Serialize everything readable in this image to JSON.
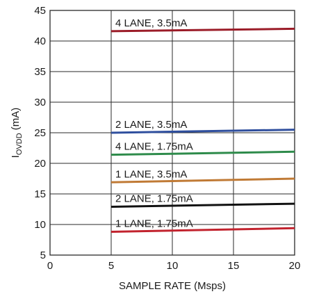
{
  "chart_data": {
    "type": "line",
    "xlabel": "SAMPLE RATE (Msps)",
    "ylabel": {
      "main": "I",
      "sub": "OVDD",
      "unit": " (mA)"
    },
    "xlim": [
      0,
      20
    ],
    "ylim": [
      5,
      45
    ],
    "x_ticks": [
      0,
      5,
      10,
      15,
      20
    ],
    "y_ticks": [
      5,
      10,
      15,
      20,
      25,
      30,
      35,
      40,
      45
    ],
    "grid": true,
    "series": [
      {
        "name": "4 LANE, 3.5mA",
        "color": "#9b1c28",
        "x": [
          5,
          20
        ],
        "y": [
          41.6,
          42.0
        ]
      },
      {
        "name": "2 LANE, 3.5mA",
        "color": "#2f4f9e",
        "x": [
          5,
          20
        ],
        "y": [
          25.0,
          25.5
        ]
      },
      {
        "name": "4 LANE, 1.75mA",
        "color": "#2e8b4b",
        "x": [
          5,
          20
        ],
        "y": [
          21.4,
          21.9
        ]
      },
      {
        "name": "1 LANE, 3.5mA",
        "color": "#c07a35",
        "x": [
          5,
          20
        ],
        "y": [
          16.9,
          17.5
        ]
      },
      {
        "name": "2 LANE, 1.75mA",
        "color": "#111111",
        "x": [
          5,
          20
        ],
        "y": [
          12.9,
          13.4
        ]
      },
      {
        "name": "1 LANE, 1.75mA",
        "color": "#c2232e",
        "x": [
          5,
          20
        ],
        "y": [
          8.8,
          9.4
        ]
      }
    ]
  }
}
